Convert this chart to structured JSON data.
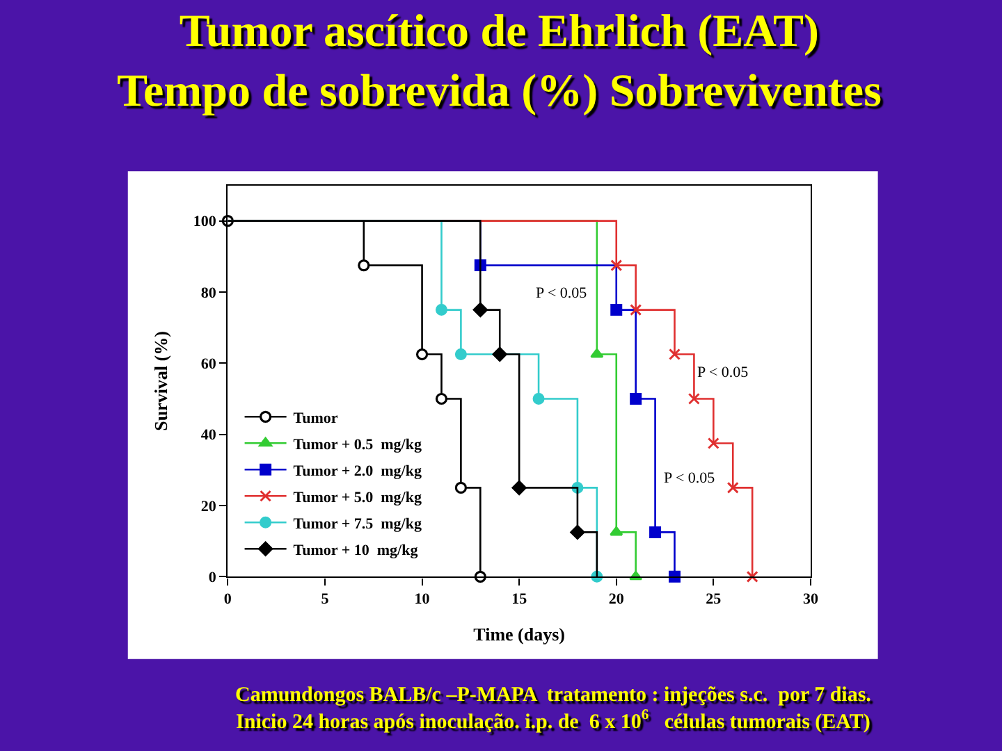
{
  "chart_data": {
    "type": "step",
    "title": "Tumor ascítico de Ehrlich (EAT)\nTempo de sobrevida (%) Sobreviventes",
    "xlabel": "Time (days)",
    "ylabel": "Survival (%)",
    "xlim": [
      0,
      30
    ],
    "xticks": [
      0,
      5,
      10,
      15,
      20,
      25,
      30
    ],
    "ylim": [
      0,
      110
    ],
    "yticks": [
      0,
      20,
      40,
      60,
      80,
      100
    ],
    "legend": "bottom left",
    "series": [
      {
        "name": "Tumor",
        "color": "#000000",
        "marker": "circle",
        "x": [
          0,
          7,
          10,
          11,
          12,
          13
        ],
        "values": [
          100,
          87.5,
          62.5,
          50,
          25,
          0
        ]
      },
      {
        "name": "Tumor + 0.5  mg/kg",
        "color": "#33cc33",
        "marker": "triangle",
        "x": [
          0,
          19,
          20,
          21
        ],
        "values": [
          100,
          62.5,
          12.5,
          0
        ]
      },
      {
        "name": "Tumor + 2.0  mg/kg",
        "color": "#0000cc",
        "marker": "square",
        "x": [
          0,
          13,
          20,
          21,
          22,
          23
        ],
        "values": [
          100,
          87.5,
          75,
          50,
          12.5,
          0
        ]
      },
      {
        "name": "Tumor + 5.0  mg/kg",
        "color": "#e03030",
        "marker": "cross",
        "x": [
          0,
          20,
          21,
          23,
          24,
          25,
          26,
          27
        ],
        "values": [
          100,
          87.5,
          75,
          62.5,
          50,
          37.5,
          25,
          0
        ]
      },
      {
        "name": "Tumor + 7.5  mg/kg",
        "color": "#33cccc",
        "marker": "circle",
        "x": [
          0,
          11,
          12,
          16,
          18,
          19
        ],
        "values": [
          100,
          75,
          62.5,
          50,
          25,
          0
        ]
      },
      {
        "name": "Tumor + 10  mg/kg",
        "color": "#000000",
        "marker": "diamond",
        "x": [
          0,
          13,
          14,
          15,
          18,
          19
        ],
        "values": [
          100,
          75,
          62.5,
          25,
          12.5,
          0
        ]
      }
    ],
    "annotations": [
      "P < 0.05",
      "P < 0.05",
      "P < 0.05",
      "Camundongos BALB/c –P-MAPA  tratamento : injeções s.c.  por 7 dias.\nInicio 24 horas após inoculação. i.p. de  6 x 10$^{6}$   células tumorais (EAT)"
    ]
  }
}
